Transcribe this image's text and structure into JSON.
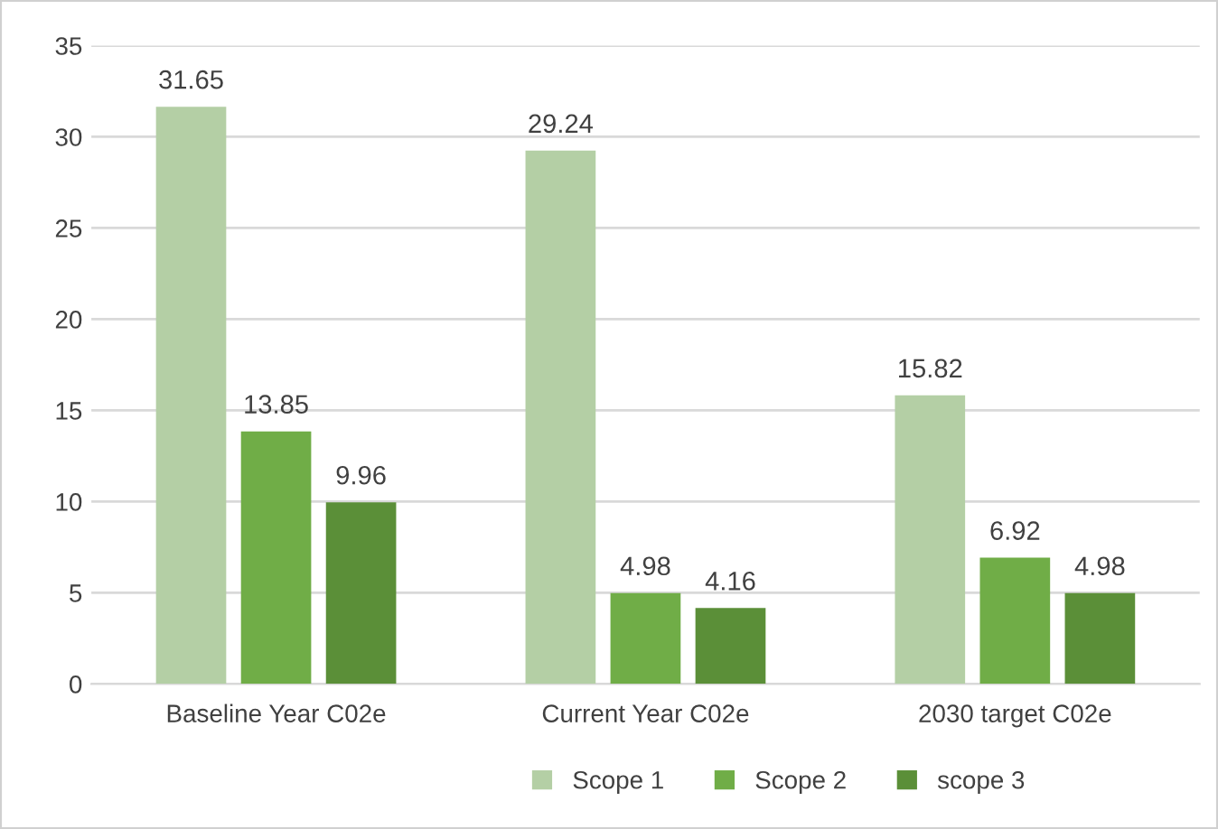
{
  "chart_data": {
    "type": "bar",
    "categories": [
      "Baseline Year C02e",
      "Current Year C02e",
      "2030 target C02e"
    ],
    "series": [
      {
        "name": "Scope 1",
        "color": "#b4cfa5",
        "values": [
          31.65,
          29.24,
          15.82
        ]
      },
      {
        "name": "Scope 2",
        "color": "#70ad47",
        "values": [
          13.85,
          4.98,
          6.92
        ]
      },
      {
        "name": "scope 3",
        "color": "#5b8f38",
        "values": [
          9.96,
          4.16,
          4.98
        ]
      }
    ],
    "ylim": [
      0,
      35
    ],
    "yticks": [
      0,
      5,
      10,
      15,
      20,
      25,
      30,
      35
    ],
    "grid": "y",
    "legend": "bottom",
    "data_labels": true
  }
}
